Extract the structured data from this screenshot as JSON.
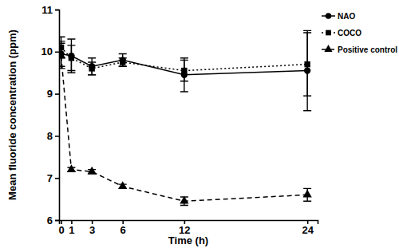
{
  "chart_data": {
    "type": "line",
    "x_label": "Time (h)",
    "y_label": "Mean fluoride concentration (ppm)",
    "x": [
      0,
      1,
      3,
      6,
      12,
      24
    ],
    "xlim": [
      -0.2,
      25
    ],
    "xticks": [
      0,
      1,
      3,
      6,
      12,
      24
    ],
    "ylim": [
      6,
      11
    ],
    "yticks": [
      6,
      7,
      8,
      9,
      10,
      11
    ],
    "legend": "right",
    "series": [
      {
        "name": "NAO",
        "color": "#000000",
        "marker": "circle",
        "line_style": "solid",
        "values": [
          9.95,
          9.9,
          9.65,
          9.8,
          9.45,
          9.55
        ],
        "errors": [
          0.3,
          0.4,
          0.2,
          0.15,
          0.4,
          0.95
        ]
      },
      {
        "name": "COCO",
        "color": "#000000",
        "marker": "square",
        "line_style": "dotted",
        "values": [
          10.1,
          9.85,
          9.6,
          9.75,
          9.55,
          9.7
        ],
        "errors": [
          0.25,
          0.3,
          0.15,
          0.1,
          0.25,
          0.75
        ]
      },
      {
        "name": "Positive control",
        "color": "#000000",
        "marker": "triangle",
        "line_style": "dashed",
        "values": [
          9.9,
          7.2,
          7.15,
          6.8,
          6.45,
          6.6
        ],
        "errors": [
          0.3,
          0.05,
          0.05,
          0.05,
          0.1,
          0.15
        ]
      }
    ]
  }
}
